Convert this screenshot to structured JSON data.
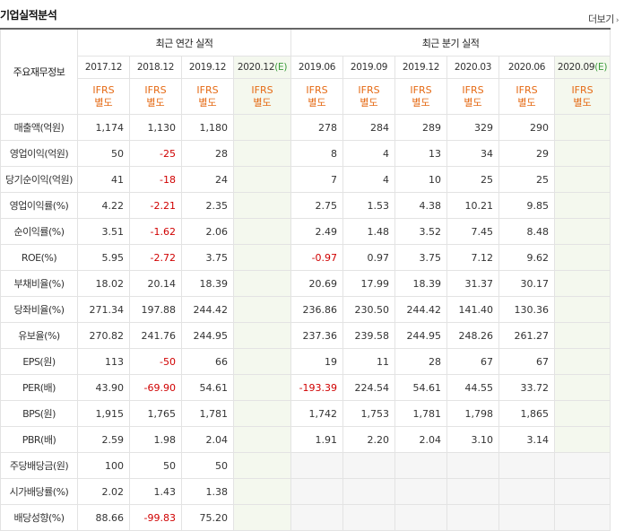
{
  "section": {
    "title": "기업실적분석",
    "more_label": "더보기",
    "more_arrow": "›"
  },
  "table": {
    "row_header": "주요재무정보",
    "group_annual": "최근 연간 실적",
    "group_quarter": "최근 분기 실적",
    "annual_periods": [
      "2017.12",
      "2018.12",
      "2019.12",
      "2020.12(E)"
    ],
    "quarter_periods": [
      "2019.06",
      "2019.09",
      "2019.12",
      "2020.03",
      "2020.06",
      "2020.09(E)"
    ],
    "ifrs_label": "IFRS",
    "basis_label": "별도",
    "rows": [
      {
        "label": "매출액(억원)",
        "values": [
          "1,174",
          "1,130",
          "1,180",
          "",
          "278",
          "284",
          "289",
          "329",
          "290",
          ""
        ]
      },
      {
        "label": "영업이익(억원)",
        "values": [
          "50",
          "-25",
          "28",
          "",
          "8",
          "4",
          "13",
          "34",
          "29",
          ""
        ]
      },
      {
        "label": "당기순이익(억원)",
        "values": [
          "41",
          "-18",
          "24",
          "",
          "7",
          "4",
          "10",
          "25",
          "25",
          ""
        ]
      },
      {
        "label": "영업이익률(%)",
        "values": [
          "4.22",
          "-2.21",
          "2.35",
          "",
          "2.75",
          "1.53",
          "4.38",
          "10.21",
          "9.85",
          ""
        ]
      },
      {
        "label": "순이익률(%)",
        "values": [
          "3.51",
          "-1.62",
          "2.06",
          "",
          "2.49",
          "1.48",
          "3.52",
          "7.45",
          "8.48",
          ""
        ]
      },
      {
        "label": "ROE(%)",
        "values": [
          "5.95",
          "-2.72",
          "3.75",
          "",
          "-0.97",
          "0.97",
          "3.75",
          "7.12",
          "9.62",
          ""
        ]
      },
      {
        "label": "부채비율(%)",
        "values": [
          "18.02",
          "20.14",
          "18.39",
          "",
          "20.69",
          "17.99",
          "18.39",
          "31.37",
          "30.17",
          ""
        ]
      },
      {
        "label": "당좌비율(%)",
        "values": [
          "271.34",
          "197.88",
          "244.42",
          "",
          "236.86",
          "230.50",
          "244.42",
          "141.40",
          "130.36",
          ""
        ]
      },
      {
        "label": "유보율(%)",
        "values": [
          "270.82",
          "241.76",
          "244.95",
          "",
          "237.36",
          "239.58",
          "244.95",
          "248.26",
          "261.27",
          ""
        ]
      },
      {
        "label": "EPS(원)",
        "values": [
          "113",
          "-50",
          "66",
          "",
          "19",
          "11",
          "28",
          "67",
          "67",
          ""
        ]
      },
      {
        "label": "PER(배)",
        "values": [
          "43.90",
          "-69.90",
          "54.61",
          "",
          "-193.39",
          "224.54",
          "54.61",
          "44.55",
          "33.72",
          ""
        ]
      },
      {
        "label": "BPS(원)",
        "values": [
          "1,915",
          "1,765",
          "1,781",
          "",
          "1,742",
          "1,753",
          "1,781",
          "1,798",
          "1,865",
          ""
        ]
      },
      {
        "label": "PBR(배)",
        "values": [
          "2.59",
          "1.98",
          "2.04",
          "",
          "1.91",
          "2.20",
          "2.04",
          "3.10",
          "3.14",
          ""
        ]
      },
      {
        "label": "주당배당금(원)",
        "values": [
          "100",
          "50",
          "50",
          "",
          "",
          "",
          "",
          "",
          "",
          ""
        ]
      },
      {
        "label": "시가배당률(%)",
        "values": [
          "2.02",
          "1.43",
          "1.38",
          "",
          "",
          "",
          "",
          "",
          "",
          ""
        ]
      },
      {
        "label": "배당성향(%)",
        "values": [
          "88.66",
          "-99.83",
          "75.20",
          "",
          "",
          "",
          "",
          "",
          "",
          ""
        ]
      }
    ]
  },
  "colors": {
    "negative": "#d00000",
    "ifrs": "#e56a14",
    "estimate_bg": "#f4f8ee",
    "estimate_mark": "#3a9a3a"
  }
}
